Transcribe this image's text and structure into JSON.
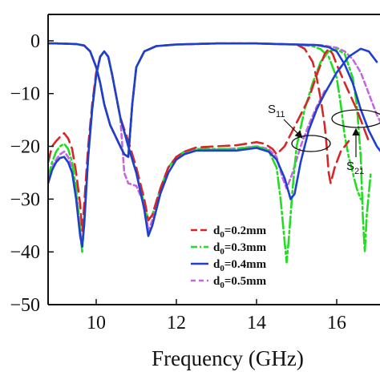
{
  "chart_data": {
    "type": "line",
    "xlabel": "Frequency (GHz)",
    "ylabel": "",
    "xlim": [
      8.8,
      17.2
    ],
    "ylim": [
      -50,
      5
    ],
    "xticks": [
      10,
      12,
      14,
      16
    ],
    "yticks": [
      0,
      -10,
      -20,
      -30,
      -40,
      -50
    ],
    "tick_labels": {
      "x": [
        "10",
        "12",
        "14",
        "16"
      ],
      "y": [
        "0",
        "−10",
        "−20",
        "−30",
        "−40",
        "−50"
      ]
    },
    "grid": false,
    "legend_position": "bottom-center",
    "annotations": [
      {
        "base": "S",
        "sub": "11"
      },
      {
        "base": "S",
        "sub": "21"
      }
    ],
    "series": [
      {
        "name": "d0=0.2mm",
        "label_base": "d",
        "label_sub": "0",
        "label_rest": "=0.2mm",
        "color": "#d62728",
        "dash": "14,7",
        "s11": [
          [
            8.8,
            -23
          ],
          [
            8.9,
            -20
          ],
          [
            9.0,
            -19
          ],
          [
            9.1,
            -18.2
          ],
          [
            9.2,
            -17.5
          ],
          [
            9.3,
            -18.5
          ],
          [
            9.4,
            -20.5
          ],
          [
            9.5,
            -25
          ],
          [
            9.6,
            -31
          ],
          [
            9.65,
            -36
          ],
          [
            9.7,
            -31
          ],
          [
            9.8,
            -20
          ],
          [
            9.9,
            -12
          ],
          [
            10.0,
            -6
          ],
          [
            10.1,
            -3
          ],
          [
            10.2,
            -2
          ],
          [
            10.3,
            -3
          ],
          [
            10.4,
            -6.5
          ],
          [
            10.5,
            -10.5
          ],
          [
            10.6,
            -14.5
          ],
          [
            10.8,
            -19
          ],
          [
            11.0,
            -24
          ],
          [
            11.2,
            -30
          ],
          [
            11.3,
            -34
          ],
          [
            11.4,
            -33
          ],
          [
            11.6,
            -28
          ],
          [
            11.8,
            -24
          ],
          [
            12.0,
            -22
          ],
          [
            12.2,
            -21
          ],
          [
            12.5,
            -20.2
          ],
          [
            13.0,
            -20
          ],
          [
            13.5,
            -19.8
          ],
          [
            14.0,
            -19.2
          ],
          [
            14.2,
            -19.5
          ],
          [
            14.4,
            -20.5
          ],
          [
            14.5,
            -21.5
          ],
          [
            14.7,
            -20
          ],
          [
            14.9,
            -17
          ],
          [
            15.1,
            -14
          ],
          [
            15.3,
            -11
          ],
          [
            15.5,
            -6.5
          ],
          [
            15.7,
            -2.5
          ],
          [
            15.8,
            -1.5
          ],
          [
            15.9,
            -2.5
          ],
          [
            16.0,
            -4.5
          ],
          [
            16.2,
            -8
          ],
          [
            16.5,
            -13
          ],
          [
            16.8,
            -19
          ]
        ],
        "s21": [
          [
            8.8,
            -0.5
          ],
          [
            9.0,
            -0.5
          ],
          [
            9.5,
            -0.6
          ],
          [
            9.7,
            -0.9
          ],
          [
            9.85,
            -2
          ],
          [
            10.0,
            -5
          ],
          [
            10.1,
            -8
          ],
          [
            10.2,
            -12
          ],
          [
            10.35,
            -16
          ],
          [
            10.6,
            -20
          ],
          [
            10.7,
            -21.5
          ],
          [
            10.8,
            -22
          ]
        ]
      },
      {
        "name": "d0=0.3mm",
        "label_base": "d",
        "label_sub": "0",
        "label_rest": "=0.3mm",
        "color": "#22dd22",
        "dash": "14,4,3,4",
        "s11": [
          [
            8.8,
            -26
          ],
          [
            8.9,
            -23
          ],
          [
            9.0,
            -21
          ],
          [
            9.1,
            -20
          ],
          [
            9.2,
            -19.5
          ],
          [
            9.3,
            -20.5
          ],
          [
            9.4,
            -23
          ],
          [
            9.5,
            -28
          ],
          [
            9.6,
            -36
          ],
          [
            9.65,
            -40
          ],
          [
            9.7,
            -34
          ],
          [
            9.8,
            -22
          ],
          [
            9.9,
            -13
          ],
          [
            10.0,
            -6.5
          ],
          [
            10.1,
            -3
          ],
          [
            10.2,
            -2
          ],
          [
            10.3,
            -3
          ],
          [
            10.4,
            -6.5
          ],
          [
            10.5,
            -10.5
          ],
          [
            10.6,
            -14.5
          ],
          [
            10.8,
            -20
          ],
          [
            11.0,
            -25
          ],
          [
            11.2,
            -31
          ],
          [
            11.3,
            -34
          ],
          [
            11.4,
            -33
          ],
          [
            11.6,
            -28
          ],
          [
            11.8,
            -24
          ],
          [
            12.0,
            -22
          ],
          [
            12.2,
            -21
          ],
          [
            12.5,
            -20.5
          ],
          [
            13.0,
            -20.5
          ],
          [
            13.5,
            -20.5
          ],
          [
            14.0,
            -20
          ],
          [
            14.3,
            -20.8
          ],
          [
            14.5,
            -24
          ],
          [
            14.6,
            -30
          ],
          [
            14.7,
            -38
          ],
          [
            14.75,
            -42
          ],
          [
            14.8,
            -38
          ],
          [
            14.9,
            -28
          ],
          [
            15.0,
            -20
          ],
          [
            15.2,
            -13
          ],
          [
            15.4,
            -8
          ],
          [
            15.6,
            -4
          ],
          [
            15.8,
            -2
          ],
          [
            16.0,
            -1.6
          ],
          [
            16.2,
            -2.5
          ],
          [
            16.4,
            -7
          ],
          [
            16.5,
            -12
          ],
          [
            16.6,
            -22
          ],
          [
            16.65,
            -33
          ],
          [
            16.7,
            -40
          ],
          [
            16.75,
            -33
          ],
          [
            16.85,
            -25
          ]
        ],
        "s21": [
          [
            8.8,
            -0.5
          ],
          [
            9.0,
            -0.5
          ],
          [
            9.5,
            -0.6
          ],
          [
            9.7,
            -0.9
          ],
          [
            9.85,
            -2
          ],
          [
            10.0,
            -5
          ],
          [
            10.1,
            -8
          ],
          [
            10.2,
            -12
          ],
          [
            10.35,
            -16
          ],
          [
            10.6,
            -20
          ],
          [
            10.7,
            -21.5
          ],
          [
            10.8,
            -22
          ]
        ]
      },
      {
        "name": "d0=0.4mm",
        "label_base": "d",
        "label_sub": "0",
        "label_rest": "=0.4mm",
        "color": "#1f3fd0",
        "dash": "",
        "s11": [
          [
            8.8,
            -27
          ],
          [
            8.9,
            -24.5
          ],
          [
            9.0,
            -23
          ],
          [
            9.1,
            -22.2
          ],
          [
            9.2,
            -22
          ],
          [
            9.3,
            -23
          ],
          [
            9.4,
            -25
          ],
          [
            9.5,
            -30
          ],
          [
            9.6,
            -37
          ],
          [
            9.65,
            -39
          ],
          [
            9.7,
            -35
          ],
          [
            9.8,
            -22
          ],
          [
            9.9,
            -13
          ],
          [
            10.0,
            -6.5
          ],
          [
            10.1,
            -3
          ],
          [
            10.2,
            -2
          ],
          [
            10.3,
            -3
          ],
          [
            10.4,
            -6.5
          ],
          [
            10.5,
            -10.5
          ],
          [
            10.6,
            -14.5
          ],
          [
            10.8,
            -20
          ],
          [
            11.0,
            -25
          ],
          [
            11.2,
            -32
          ],
          [
            11.3,
            -37
          ],
          [
            11.4,
            -35
          ],
          [
            11.6,
            -29
          ],
          [
            11.8,
            -25
          ],
          [
            12.0,
            -22.5
          ],
          [
            12.2,
            -21.5
          ],
          [
            12.5,
            -20.8
          ],
          [
            13.0,
            -20.8
          ],
          [
            13.5,
            -20.8
          ],
          [
            14.0,
            -20.3
          ],
          [
            14.3,
            -21
          ],
          [
            14.5,
            -22.5
          ],
          [
            14.7,
            -26
          ],
          [
            14.85,
            -30
          ],
          [
            14.95,
            -29
          ],
          [
            15.1,
            -23
          ],
          [
            15.3,
            -17
          ],
          [
            15.5,
            -13
          ],
          [
            15.7,
            -10
          ],
          [
            16.0,
            -6
          ],
          [
            16.3,
            -3
          ],
          [
            16.6,
            -1.5
          ],
          [
            16.8,
            -2
          ],
          [
            17.0,
            -4
          ]
        ],
        "s21": [
          [
            8.8,
            -0.5
          ],
          [
            9.0,
            -0.5
          ],
          [
            9.5,
            -0.6
          ],
          [
            9.7,
            -0.9
          ],
          [
            9.85,
            -2
          ],
          [
            10.0,
            -5
          ],
          [
            10.1,
            -8
          ],
          [
            10.2,
            -12
          ],
          [
            10.35,
            -16
          ],
          [
            10.6,
            -20
          ],
          [
            10.7,
            -21.5
          ],
          [
            10.8,
            -22
          ]
        ]
      },
      {
        "name": "d0=0.5mm",
        "label_base": "d",
        "label_sub": "0",
        "label_rest": "=0.5mm",
        "color": "#c467e0",
        "dash": "6,4",
        "s11": [
          [
            8.8,
            -27
          ],
          [
            8.9,
            -24
          ],
          [
            9.0,
            -22.5
          ],
          [
            9.1,
            -21.5
          ],
          [
            9.2,
            -21
          ],
          [
            9.3,
            -22
          ],
          [
            9.4,
            -24
          ],
          [
            9.5,
            -29
          ],
          [
            9.6,
            -36
          ],
          [
            9.65,
            -39
          ],
          [
            9.7,
            -34
          ],
          [
            9.8,
            -22
          ],
          [
            9.9,
            -13
          ],
          [
            10.0,
            -6.5
          ],
          [
            10.1,
            -3
          ],
          [
            10.2,
            -2
          ],
          [
            10.3,
            -3
          ],
          [
            10.4,
            -6.5
          ],
          [
            10.5,
            -10.5
          ],
          [
            10.6,
            -14.5
          ],
          [
            10.7,
            -25
          ],
          [
            10.8,
            -27
          ],
          [
            11.0,
            -27.5
          ],
          [
            11.2,
            -31
          ],
          [
            11.3,
            -36
          ],
          [
            11.4,
            -34
          ],
          [
            11.6,
            -28
          ],
          [
            11.8,
            -24
          ],
          [
            12.0,
            -22
          ],
          [
            12.2,
            -21.2
          ],
          [
            12.5,
            -20.6
          ],
          [
            13.0,
            -20.6
          ],
          [
            13.5,
            -20.4
          ],
          [
            14.0,
            -20
          ],
          [
            14.3,
            -20.5
          ],
          [
            14.5,
            -22
          ],
          [
            14.65,
            -26
          ],
          [
            14.75,
            -28
          ],
          [
            14.9,
            -25
          ],
          [
            15.1,
            -20
          ],
          [
            15.3,
            -16
          ],
          [
            15.5,
            -12.5
          ],
          [
            15.7,
            -9.5
          ]
        ],
        "s21": [
          [
            8.8,
            -0.5
          ],
          [
            9.0,
            -0.5
          ],
          [
            9.5,
            -0.6
          ],
          [
            9.7,
            -0.9
          ],
          [
            9.85,
            -2
          ],
          [
            10.0,
            -5
          ],
          [
            10.1,
            -8
          ],
          [
            10.2,
            -12
          ],
          [
            10.35,
            -16
          ],
          [
            10.6,
            -20
          ],
          [
            10.7,
            -21.5
          ],
          [
            10.8,
            -22
          ]
        ]
      }
    ],
    "s21_passband": [
      [
        10.8,
        -22
      ],
      [
        10.9,
        -12
      ],
      [
        11.0,
        -5
      ],
      [
        11.2,
        -2
      ],
      [
        11.5,
        -1
      ],
      [
        12.0,
        -0.7
      ],
      [
        13.0,
        -0.5
      ],
      [
        14.0,
        -0.5
      ],
      [
        14.5,
        -0.6
      ],
      [
        15.0,
        -0.7
      ]
    ],
    "s21_rolloff": {
      "d0=0.2mm": [
        [
          15.0,
          -0.7
        ],
        [
          15.2,
          -1.5
        ],
        [
          15.4,
          -4
        ],
        [
          15.5,
          -7
        ],
        [
          15.6,
          -11
        ],
        [
          15.7,
          -16
        ],
        [
          15.75,
          -20
        ],
        [
          15.8,
          -25
        ],
        [
          15.85,
          -27
        ],
        [
          15.95,
          -24
        ],
        [
          16.1,
          -21
        ],
        [
          16.3,
          -19
        ]
      ],
      "d0=0.3mm": [
        [
          15.0,
          -0.7
        ],
        [
          15.4,
          -1
        ],
        [
          15.6,
          -1.6
        ],
        [
          15.8,
          -3
        ],
        [
          16.0,
          -7
        ],
        [
          16.1,
          -12
        ],
        [
          16.2,
          -18
        ],
        [
          16.3,
          -22
        ],
        [
          16.4,
          -25
        ],
        [
          16.5,
          -28
        ],
        [
          16.6,
          -30
        ]
      ],
      "d0=0.4mm": [
        [
          15.0,
          -0.7
        ],
        [
          15.5,
          -0.8
        ],
        [
          15.8,
          -1.2
        ],
        [
          16.0,
          -2
        ],
        [
          16.2,
          -4.5
        ],
        [
          16.4,
          -8
        ],
        [
          16.6,
          -13
        ],
        [
          16.8,
          -17
        ],
        [
          17.0,
          -20
        ],
        [
          17.2,
          -22
        ]
      ],
      "d0=0.5mm": [
        [
          15.0,
          -0.7
        ],
        [
          15.6,
          -0.8
        ],
        [
          16.0,
          -1.3
        ],
        [
          16.2,
          -2
        ],
        [
          16.4,
          -3.5
        ],
        [
          16.6,
          -6
        ],
        [
          16.8,
          -10
        ],
        [
          17.0,
          -14
        ],
        [
          17.2,
          -17
        ]
      ]
    }
  }
}
